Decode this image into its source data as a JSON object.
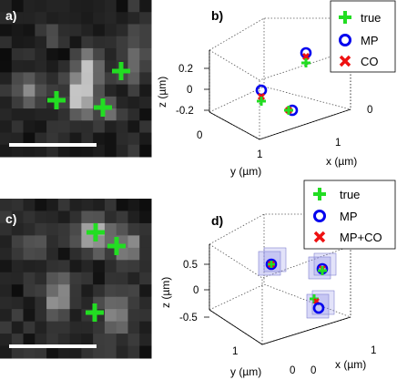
{
  "panels": {
    "a": {
      "label": "a)"
    },
    "b": {
      "label": "b)",
      "legend": [
        "true",
        "MP",
        "CO"
      ],
      "z_axis": {
        "label": "z (µm)",
        "ticks": [
          "0.2",
          "0",
          "-0.2"
        ]
      },
      "y_axis": {
        "label": "y (µm)",
        "ticks": [
          "0",
          "1"
        ]
      },
      "x_axis": {
        "label": "x (µm)",
        "ticks": [
          "0",
          "1"
        ]
      }
    },
    "c": {
      "label": "c)"
    },
    "d": {
      "label": "d)",
      "legend": [
        "true",
        "MP",
        "MP+CO"
      ],
      "z_axis": {
        "label": "z (µm)",
        "ticks": [
          "0.5",
          "0",
          "-0.5"
        ]
      },
      "y_axis": {
        "label": "y (µm)",
        "ticks": [
          "1",
          "0"
        ]
      },
      "x_axis": {
        "label": "x (µm)",
        "ticks": [
          "0",
          "1"
        ]
      }
    }
  },
  "colors": {
    "true_marker": "#22dd22",
    "mp_marker": "#0000ee",
    "co_marker": "#ee1111"
  }
}
